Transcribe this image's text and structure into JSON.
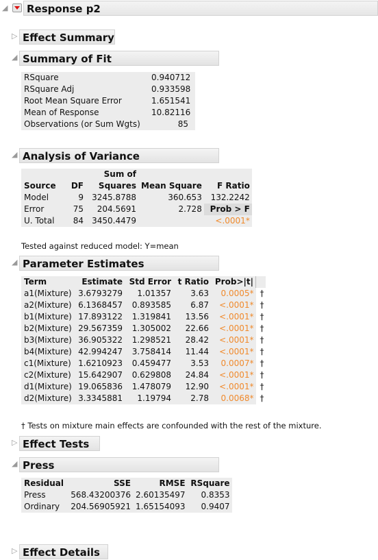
{
  "report": {
    "title": "Response p2",
    "sections": {
      "effect_summary": "Effect Summary",
      "summary_of_fit": "Summary of Fit",
      "analysis_of_variance": "Analysis of Variance",
      "parameter_estimates": "Parameter Estimates",
      "effect_tests": "Effect Tests",
      "press": "Press",
      "effect_details": "Effect Details"
    }
  },
  "summary_of_fit": {
    "rows": [
      {
        "label": "RSquare",
        "value": "0.940712"
      },
      {
        "label": "RSquare Adj",
        "value": "0.933598"
      },
      {
        "label": "Root Mean Square Error",
        "value": "1.651541"
      },
      {
        "label": "Mean of Response",
        "value": "10.82116"
      },
      {
        "label": "Observations (or Sum Wgts)",
        "value": "85"
      }
    ]
  },
  "anova": {
    "header_top": "Sum of",
    "headers": [
      "Source",
      "DF",
      "Squares",
      "Mean Square",
      "F Ratio"
    ],
    "rows": [
      {
        "source": "Model",
        "df": "9",
        "ss": "3245.8788",
        "ms": "360.653",
        "f": "132.2242"
      },
      {
        "source": "Error",
        "df": "75",
        "ss": "204.5691",
        "ms": "2.728",
        "f": "Prob > F"
      },
      {
        "source": "U. Total",
        "df": "84",
        "ss": "3450.4479",
        "ms": "",
        "f": "<.0001*"
      }
    ],
    "note": "Tested against reduced model: Y=mean"
  },
  "parameter_estimates": {
    "headers": [
      "Term",
      "Estimate",
      "Std Error",
      "t Ratio",
      "Prob>|t|"
    ],
    "rows": [
      {
        "term": "a1(Mixture)",
        "est": "3.6793279",
        "se": "1.01357",
        "t": "3.63",
        "p": "0.0005*",
        "mark": "†"
      },
      {
        "term": "a2(Mixture)",
        "est": "6.1368457",
        "se": "0.893585",
        "t": "6.87",
        "p": "<.0001*",
        "mark": "†"
      },
      {
        "term": "b1(Mixture)",
        "est": "17.893122",
        "se": "1.319841",
        "t": "13.56",
        "p": "<.0001*",
        "mark": "†"
      },
      {
        "term": "b2(Mixture)",
        "est": "29.567359",
        "se": "1.305002",
        "t": "22.66",
        "p": "<.0001*",
        "mark": "†"
      },
      {
        "term": "b3(Mixture)",
        "est": "36.905322",
        "se": "1.298521",
        "t": "28.42",
        "p": "<.0001*",
        "mark": "†"
      },
      {
        "term": "b4(Mixture)",
        "est": "42.994247",
        "se": "3.758414",
        "t": "11.44",
        "p": "<.0001*",
        "mark": "†"
      },
      {
        "term": "c1(Mixture)",
        "est": "1.6210923",
        "se": "0.459477",
        "t": "3.53",
        "p": "0.0007*",
        "mark": "†"
      },
      {
        "term": "c2(Mixture)",
        "est": "15.642907",
        "se": "0.629808",
        "t": "24.84",
        "p": "<.0001*",
        "mark": "†"
      },
      {
        "term": "d1(Mixture)",
        "est": "19.065836",
        "se": "1.478079",
        "t": "12.90",
        "p": "<.0001*",
        "mark": "†"
      },
      {
        "term": "d2(Mixture)",
        "est": "3.3345881",
        "se": "1.19794",
        "t": "2.78",
        "p": "0.0068*",
        "mark": "†"
      }
    ],
    "note": "† Tests on mixture main effects are confounded with the rest of the mixture."
  },
  "press": {
    "headers": [
      "Residual",
      "SSE",
      "RMSE",
      "RSquare"
    ],
    "rows": [
      {
        "residual": "Press",
        "sse": "568.43200376",
        "rmse": "2.60135497",
        "rsq": "0.8353"
      },
      {
        "residual": "Ordinary",
        "sse": "204.56905921",
        "rmse": "1.65154093",
        "rsq": "0.9407"
      }
    ]
  },
  "colors": {
    "significant": "#f08a2c",
    "header_bg": "#e8e8e8",
    "red_triangle": "#dd1111"
  },
  "icons": {
    "expanded": "disclosure-open-icon",
    "collapsed": "disclosure-closed-icon",
    "menu": "red-triangle-menu-icon"
  }
}
